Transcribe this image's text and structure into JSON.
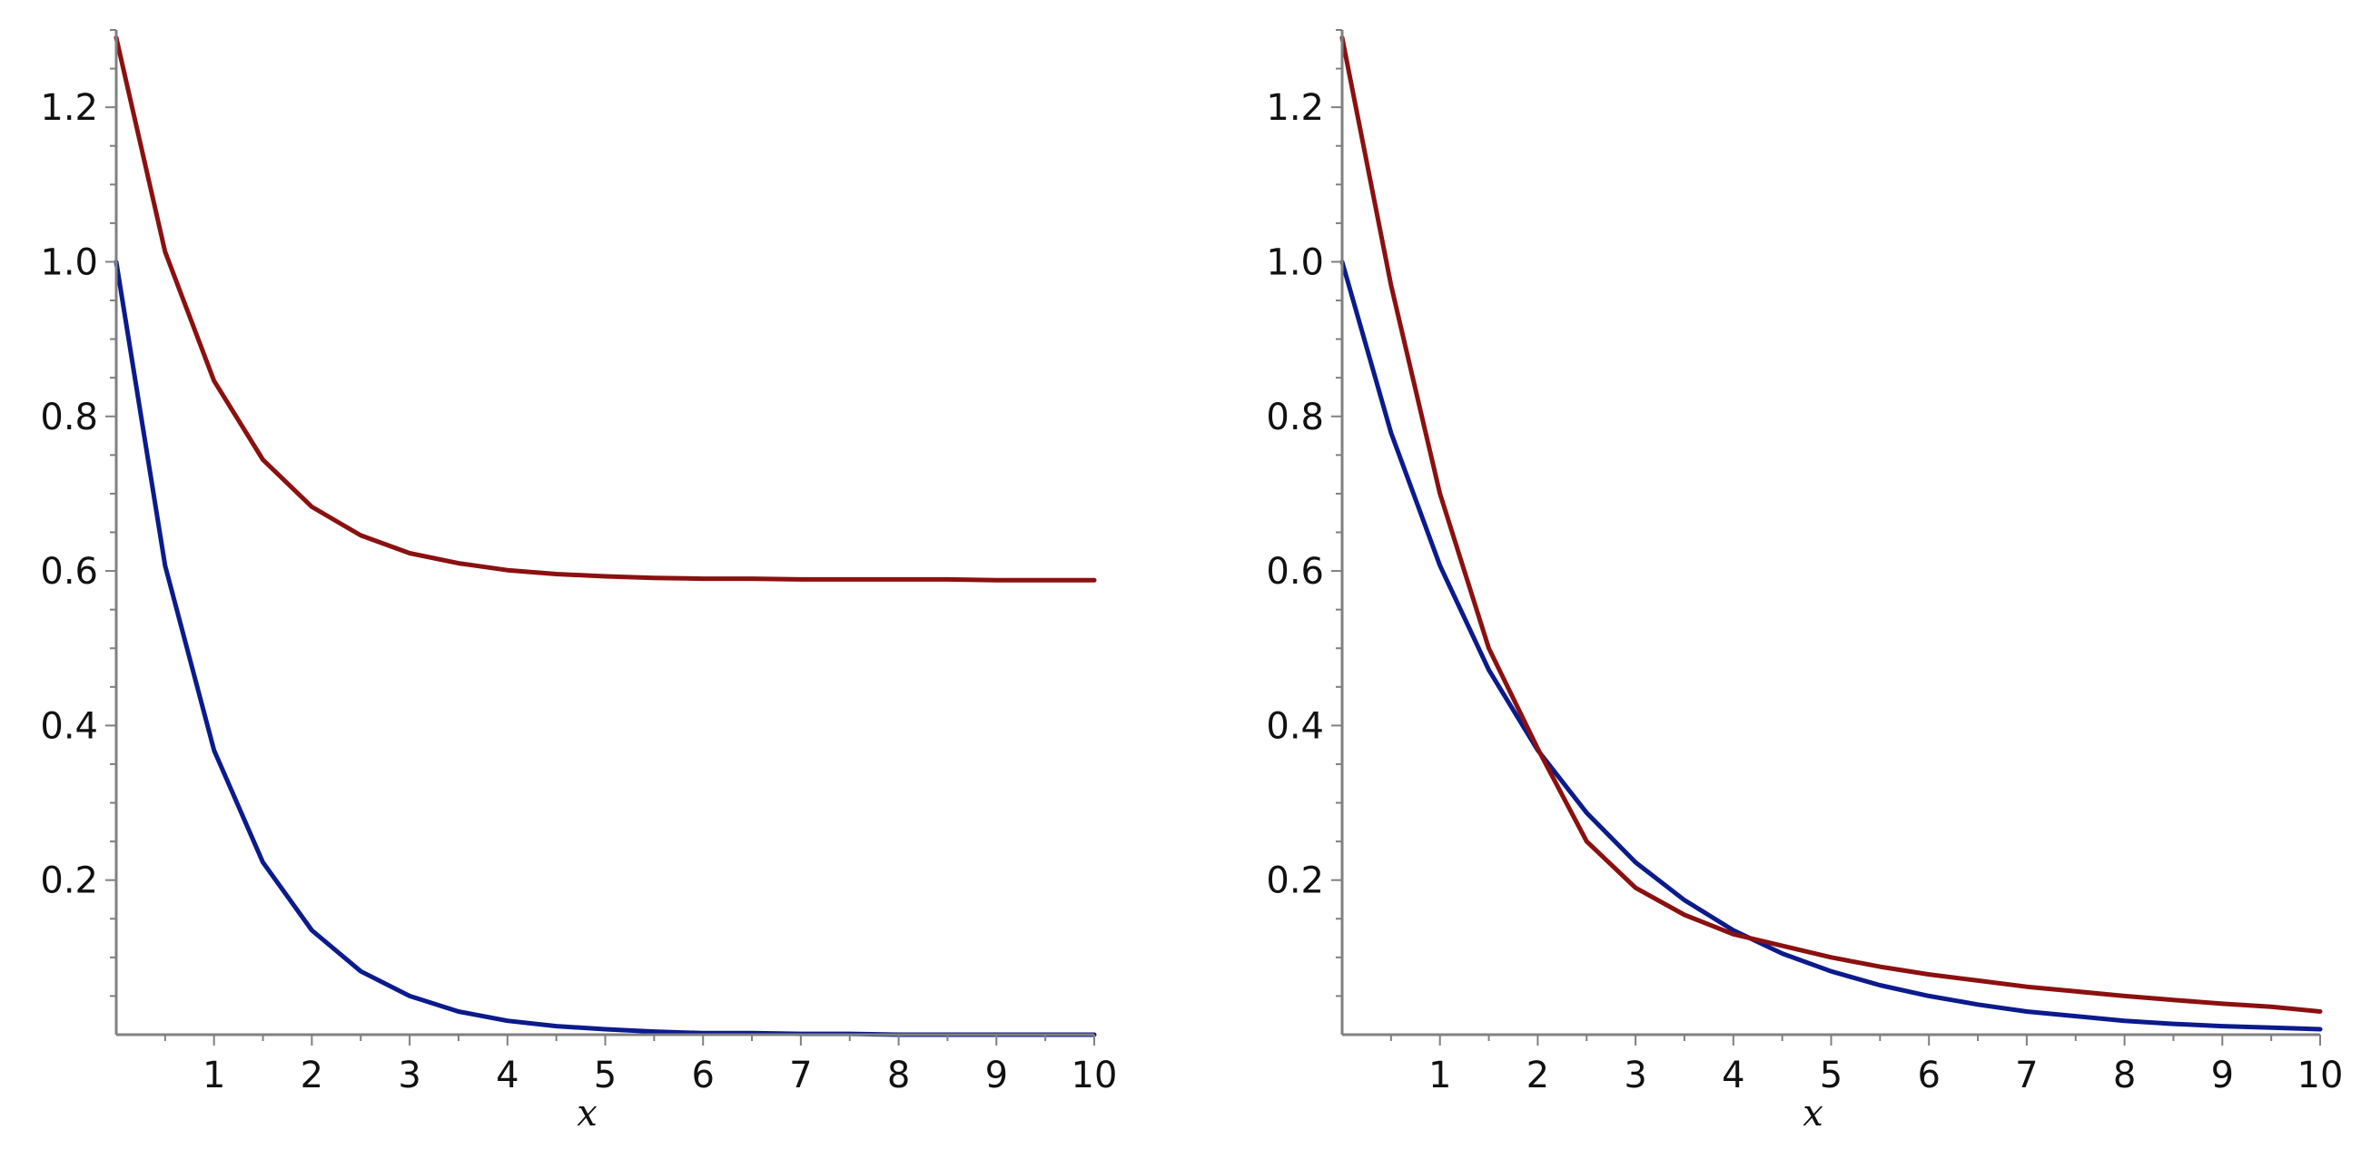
{
  "colors": {
    "series_blue": "#0b1a8c",
    "series_red": "#8b1010",
    "axis": "#808080"
  },
  "chart_data": [
    {
      "type": "line",
      "xlabel": "x",
      "ylabel": "",
      "xlim": [
        0,
        10
      ],
      "ylim": [
        0,
        1.3
      ],
      "xticks": [
        "1",
        "2",
        "3",
        "4",
        "5",
        "6",
        "7",
        "8",
        "9",
        "10"
      ],
      "yticks": [
        "0.2",
        "0.4",
        "0.6",
        "0.8",
        "1.0",
        "1.2"
      ],
      "grid": false,
      "series": [
        {
          "color": "#0b1a8c",
          "x": [
            0,
            0.5,
            1,
            1.5,
            2,
            2.5,
            3,
            3.5,
            4,
            4.5,
            5,
            5.5,
            6,
            6.5,
            7,
            7.5,
            8,
            8.5,
            9,
            9.5,
            10
          ],
          "y": [
            1.0,
            0.607,
            0.368,
            0.223,
            0.135,
            0.082,
            0.05,
            0.03,
            0.018,
            0.011,
            0.007,
            0.004,
            0.002,
            0.002,
            0.001,
            0.001,
            0.0,
            0.0,
            0.0,
            0.0,
            0.0
          ]
        },
        {
          "color": "#8b1010",
          "x": [
            0,
            0.5,
            1,
            1.5,
            2,
            2.5,
            3,
            3.5,
            4,
            4.5,
            5,
            5.5,
            6,
            6.5,
            7,
            7.5,
            8,
            8.5,
            9,
            9.5,
            10
          ],
          "y": [
            1.29,
            1.013,
            0.846,
            0.744,
            0.683,
            0.646,
            0.623,
            0.61,
            0.601,
            0.596,
            0.593,
            0.591,
            0.59,
            0.59,
            0.589,
            0.589,
            0.589,
            0.589,
            0.588,
            0.588,
            0.588
          ]
        }
      ]
    },
    {
      "type": "line",
      "xlabel": "x",
      "ylabel": "",
      "xlim": [
        0,
        10
      ],
      "ylim": [
        0,
        1.3
      ],
      "xticks": [
        "1",
        "2",
        "3",
        "4",
        "5",
        "6",
        "7",
        "8",
        "9",
        "10"
      ],
      "yticks": [
        "0.2",
        "0.4",
        "0.6",
        "0.8",
        "1.0",
        "1.2"
      ],
      "grid": false,
      "series": [
        {
          "color": "#0b1a8c",
          "x": [
            0,
            0.5,
            1,
            1.5,
            2,
            2.5,
            3,
            3.5,
            4,
            4.5,
            5,
            5.5,
            6,
            6.5,
            7,
            7.5,
            8,
            8.5,
            9,
            9.5,
            10
          ],
          "y": [
            1.0,
            0.779,
            0.607,
            0.472,
            0.368,
            0.287,
            0.223,
            0.174,
            0.135,
            0.105,
            0.082,
            0.064,
            0.05,
            0.039,
            0.03,
            0.024,
            0.018,
            0.014,
            0.011,
            0.009,
            0.007
          ]
        },
        {
          "color": "#8b1010",
          "x": [
            0,
            0.5,
            1,
            1.5,
            2,
            2.5,
            3,
            3.5,
            4,
            4.5,
            5,
            5.5,
            6,
            6.5,
            7,
            7.5,
            8,
            8.5,
            9,
            9.5,
            10
          ],
          "y": [
            1.29,
            0.97,
            0.7,
            0.5,
            0.37,
            0.25,
            0.19,
            0.155,
            0.13,
            0.115,
            0.1,
            0.088,
            0.078,
            0.07,
            0.062,
            0.056,
            0.05,
            0.045,
            0.04,
            0.036,
            0.03
          ]
        }
      ]
    }
  ]
}
